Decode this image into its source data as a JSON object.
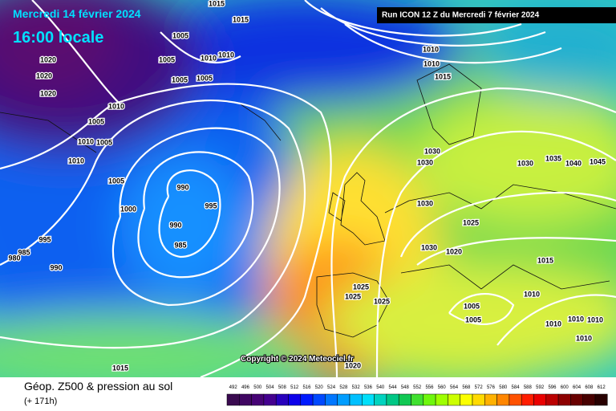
{
  "header": {
    "title": "Mercredi 14 février 2024",
    "time": "16:00 locale",
    "run": "Run ICON 12 Z du Mercredi 7 février 2024"
  },
  "copyright": "Copyright © 2024 Meteociel.fr",
  "footer": {
    "title": "Géop. Z500 & pression au sol",
    "lead": "(+ 171h)"
  },
  "colorbar": {
    "ticks": [
      492,
      496,
      500,
      504,
      508,
      512,
      516,
      520,
      524,
      528,
      532,
      536,
      540,
      544,
      548,
      552,
      556,
      560,
      564,
      568,
      572,
      576,
      580,
      584,
      588,
      592,
      596,
      600,
      604,
      608,
      612
    ]
  },
  "isobar_labels": [
    1015,
    1015,
    1005,
    1020,
    1005,
    1010,
    1010,
    1020,
    1005,
    1005,
    1020,
    1010,
    1005,
    1010,
    1005,
    1010,
    1005,
    990,
    995,
    1000,
    990,
    985,
    995,
    985,
    980,
    990,
    1010,
    1010,
    1015,
    1030,
    1030,
    1030,
    1035,
    1040,
    1045,
    1030,
    1025,
    1030,
    1020,
    1015,
    1025,
    1025,
    1025,
    1005,
    1005,
    1010,
    1010,
    1010,
    1010,
    1010,
    1015,
    1020
  ]
}
